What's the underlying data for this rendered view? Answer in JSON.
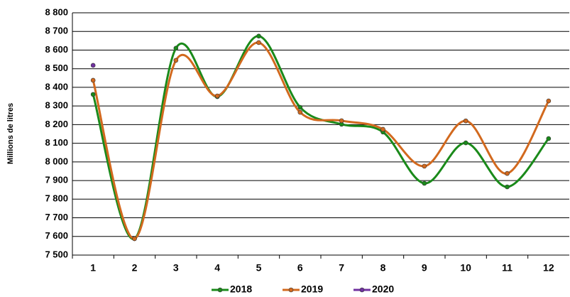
{
  "chart_data": {
    "type": "line",
    "y_label": "Millions de litres",
    "categories": [
      "1",
      "2",
      "3",
      "4",
      "5",
      "6",
      "7",
      "8",
      "9",
      "10",
      "11",
      "12"
    ],
    "series": [
      {
        "name": "2018",
        "color": "#1a8a1a",
        "values": [
          8362,
          7588,
          8610,
          8350,
          8675,
          8293,
          8202,
          8160,
          7885,
          8102,
          7866,
          8125
        ]
      },
      {
        "name": "2019",
        "color": "#d2691e",
        "values": [
          8438,
          7588,
          8545,
          8354,
          8640,
          8266,
          8221,
          8175,
          7977,
          8220,
          7938,
          8327
        ]
      },
      {
        "name": "2020",
        "color": "#7030a0",
        "values": [
          8518,
          null,
          null,
          null,
          null,
          null,
          null,
          null,
          null,
          null,
          null,
          null
        ]
      }
    ],
    "ylim": [
      7500,
      8800
    ],
    "yticks": [
      {
        "value": 7500,
        "label": "7 500"
      },
      {
        "value": 7600,
        "label": "7 600"
      },
      {
        "value": 7700,
        "label": "7 700"
      },
      {
        "value": 7800,
        "label": "7 800"
      },
      {
        "value": 7900,
        "label": "7 900"
      },
      {
        "value": 8000,
        "label": "8 000"
      },
      {
        "value": 8100,
        "label": "8 100"
      },
      {
        "value": 8200,
        "label": "8 200"
      },
      {
        "value": 8300,
        "label": "8 300"
      },
      {
        "value": 8400,
        "label": "8 400"
      },
      {
        "value": 8500,
        "label": "8 500"
      },
      {
        "value": 8600,
        "label": "8 600"
      },
      {
        "value": 8700,
        "label": "8 700"
      },
      {
        "value": 8800,
        "label": "8 800"
      }
    ],
    "grid": true,
    "smooth": true,
    "legend": "bottom"
  }
}
